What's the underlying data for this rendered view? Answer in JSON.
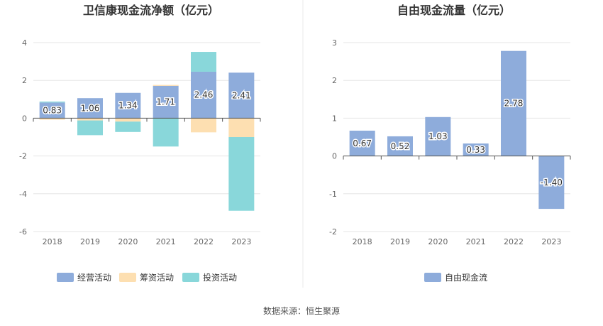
{
  "source_note": "数据来源：恒生聚源",
  "chart_data": [
    {
      "type": "bar",
      "stacked": true,
      "title": "卫信康现金流净额（亿元）",
      "categories": [
        "2018",
        "2019",
        "2020",
        "2021",
        "2022",
        "2023"
      ],
      "ylim": [
        -6,
        4
      ],
      "yticks": [
        -6,
        -4,
        -2,
        0,
        2,
        4
      ],
      "grid": true,
      "legend_position": "bottom",
      "series": [
        {
          "name": "经营活动",
          "color": "#8eacdb",
          "values": [
            0.83,
            1.06,
            1.34,
            1.71,
            2.46,
            2.41
          ],
          "labels": [
            "0.83",
            "1.06",
            "1.34",
            "1.71",
            "2.46",
            "2.41"
          ]
        },
        {
          "name": "筹资活动",
          "color": "#fddfb1",
          "values": [
            -0.08,
            -0.12,
            -0.18,
            0.05,
            -0.75,
            -1.0
          ]
        },
        {
          "name": "投资活动",
          "color": "#89d7da",
          "values": [
            0.05,
            -0.78,
            -0.55,
            -1.5,
            1.05,
            -3.9
          ]
        }
      ]
    },
    {
      "type": "bar",
      "title": "自由现金流量（亿元）",
      "categories": [
        "2018",
        "2019",
        "2020",
        "2021",
        "2022",
        "2023"
      ],
      "ylim": [
        -2,
        3
      ],
      "yticks": [
        -2,
        -1,
        0,
        1,
        2,
        3
      ],
      "grid": true,
      "legend_position": "bottom",
      "series": [
        {
          "name": "自由现金流",
          "color": "#8eacdb",
          "values": [
            0.67,
            0.52,
            1.03,
            0.33,
            2.78,
            -1.4
          ],
          "labels": [
            "0.67",
            "0.52",
            "1.03",
            "0.33",
            "2.78",
            "-1.40"
          ]
        }
      ]
    }
  ]
}
